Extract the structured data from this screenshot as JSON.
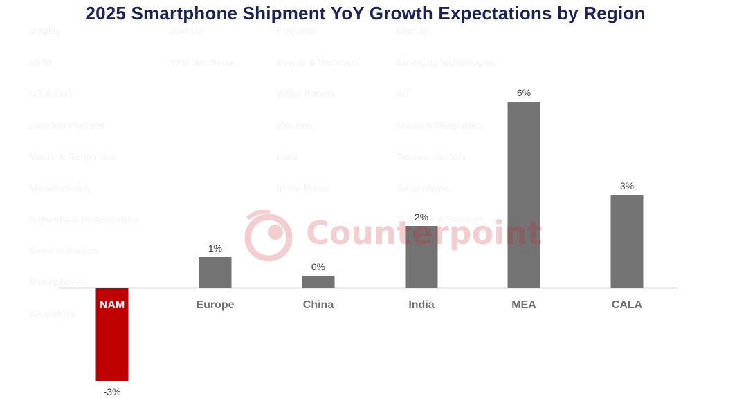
{
  "background_menu": {
    "columns": [
      [
        "Display",
        "eSIM",
        "IoT & cIoT",
        "Location Platform",
        "Macro & Geopolitics",
        "Manufacturing",
        "Networks & Infrastructure",
        "Semiconductors",
        "Smartphones",
        "Wearables"
      ],
      [
        "Join Us",
        "Who We Serve"
      ],
      [
        "Podcasts",
        "Events & Webinars",
        "White Papers",
        "Reviews",
        "Data",
        "In the Press"
      ],
      [
        "Display",
        "Emerging technologies",
        "IoT",
        "Macro & Geopolitics",
        "Semiconductors",
        "Smartphone",
        "Software & Services"
      ]
    ]
  },
  "watermark": {
    "text": "Counterpoint",
    "color": "#d0202a"
  },
  "colors": {
    "positive_bar": "#737373",
    "negative_bar": "#c00000",
    "title": "#1b2356",
    "axis": "#d9d9d9"
  },
  "chart_data": {
    "type": "bar",
    "title": "2025 Smartphone Shipment YoY Growth Expectations by Region",
    "xlabel": "",
    "ylabel": "",
    "categories": [
      "NAM",
      "Europe",
      "China",
      "India",
      "MEA",
      "CALA"
    ],
    "values": [
      -3,
      1,
      0.4,
      2,
      6,
      3
    ],
    "data_labels": [
      "-3%",
      "1%",
      "0%",
      "2%",
      "6%",
      "3%"
    ],
    "ylim": [
      -3,
      6
    ],
    "grid": false,
    "legend": "none"
  }
}
